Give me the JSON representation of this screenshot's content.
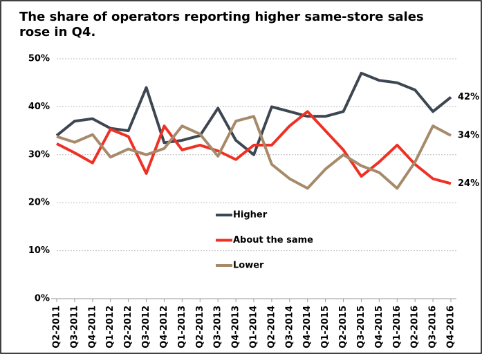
{
  "chart_data": {
    "type": "line",
    "title": "The share of operators reporting higher same-store sales rose in Q4.",
    "categories": [
      "Q2-2011",
      "Q3-2011",
      "Q4-2011",
      "Q1-2012",
      "Q2-2012",
      "Q3-2012",
      "Q4-2012",
      "Q1-2013",
      "Q2-2013",
      "Q3-2013",
      "Q4-2013",
      "Q1-2014",
      "Q2-2014",
      "Q3-2014",
      "Q4-2014",
      "Q1-2015",
      "Q2-2015",
      "Q3-2015",
      "Q4-2015",
      "Q1-2016",
      "Q2-2016",
      "Q3-2016",
      "Q4-2016"
    ],
    "series": [
      {
        "name": "Higher",
        "color": "#3d4651",
        "values": [
          34,
          37,
          37.5,
          35.5,
          35,
          44,
          32.5,
          33,
          34,
          39.7,
          33,
          30,
          40,
          39,
          38,
          38,
          39,
          47,
          45.5,
          45,
          43.5,
          39,
          42
        ],
        "value_labels": [
          null,
          null,
          null,
          null,
          null,
          null,
          null,
          null,
          null,
          null,
          null,
          null,
          null,
          null,
          null,
          null,
          null,
          null,
          null,
          null,
          null,
          null,
          "42%"
        ]
      },
      {
        "name": "About the same",
        "color": "#ee3124",
        "values": [
          32.3,
          30.4,
          28.3,
          35.3,
          33.8,
          26.1,
          36,
          31,
          32,
          30.8,
          29,
          32,
          32,
          36,
          39,
          35,
          31,
          25.5,
          28.5,
          32,
          28,
          25,
          24
        ],
        "value_labels": [
          null,
          null,
          null,
          null,
          null,
          null,
          null,
          null,
          null,
          null,
          null,
          null,
          null,
          null,
          null,
          null,
          null,
          null,
          null,
          null,
          null,
          null,
          "24%"
        ]
      },
      {
        "name": "Lower",
        "color": "#a68a6a",
        "values": [
          33.8,
          32.6,
          34.2,
          29.5,
          31.2,
          30,
          31.3,
          36,
          34.3,
          29.7,
          37,
          38,
          28,
          25,
          23,
          27,
          30,
          27.7,
          26.3,
          23,
          28.5,
          36,
          34
        ],
        "value_labels": [
          null,
          null,
          null,
          null,
          null,
          null,
          null,
          null,
          null,
          null,
          null,
          null,
          null,
          null,
          null,
          null,
          null,
          null,
          null,
          null,
          null,
          null,
          "34%"
        ]
      }
    ],
    "ylim": [
      0,
      50
    ],
    "yticks": [
      {
        "value": 0,
        "label": "0%"
      },
      {
        "value": 10,
        "label": "10%"
      },
      {
        "value": 20,
        "label": "20%"
      },
      {
        "value": 30,
        "label": "30%"
      },
      {
        "value": 40,
        "label": "40%"
      },
      {
        "value": 50,
        "label": "50%"
      }
    ],
    "grid": true
  }
}
